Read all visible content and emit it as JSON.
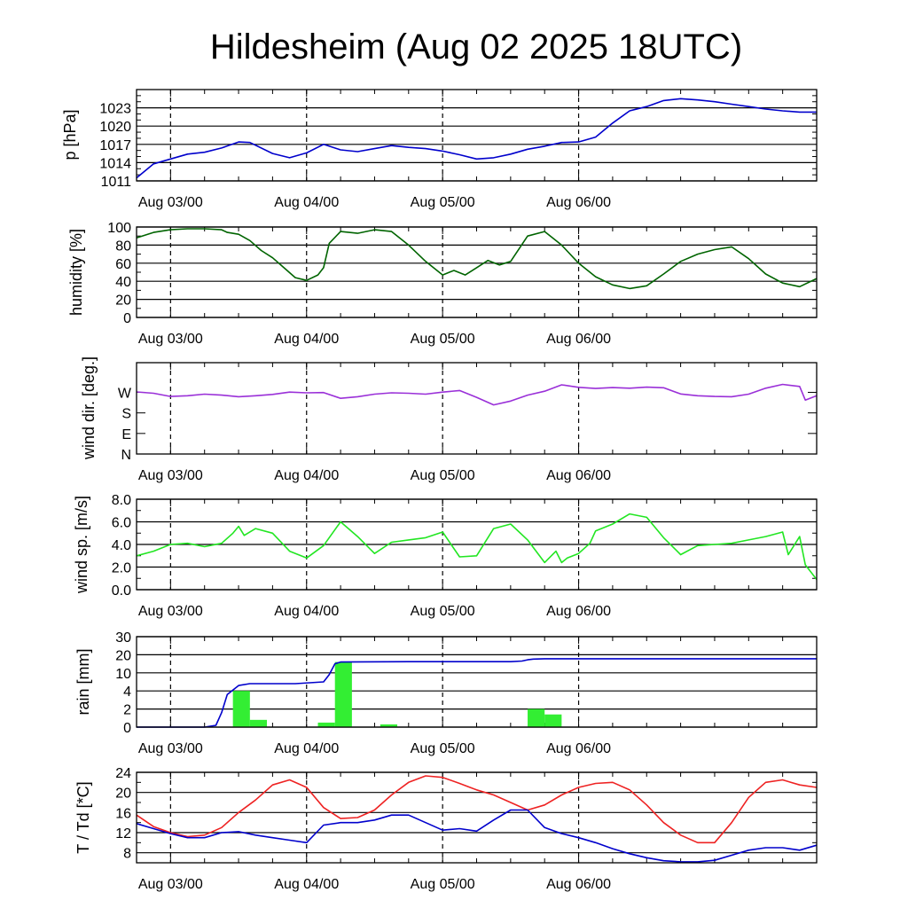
{
  "title": "Hildesheim (Aug 02 2025 18UTC)",
  "colors": {
    "pressure": "#0000cc",
    "humidity": "#006400",
    "wind_dir": "#9a30d8",
    "wind_speed": "#22e622",
    "rain_bar": "#33ee33",
    "rain_cum": "#0000cc",
    "temperature": "#ee2222",
    "dewpoint": "#0000cc"
  },
  "x_tick_labels": [
    "Aug 03/00",
    "Aug 04/00",
    "Aug 05/00",
    "Aug 06/00"
  ],
  "chart_data": [
    {
      "type": "line",
      "ylabel": "p [hPa]",
      "ylim": [
        1011,
        1026
      ],
      "yticks": [
        1011,
        1014,
        1017,
        1020,
        1023
      ],
      "yticklabels": [
        "1011",
        "1014",
        "1017",
        "1020",
        "1023"
      ],
      "x_hours": [
        0,
        3,
        6,
        9,
        12,
        15,
        18,
        20,
        24,
        27,
        30,
        33,
        36,
        39,
        42,
        45,
        48,
        51,
        54,
        57,
        60,
        63,
        66,
        69,
        72,
        75,
        78,
        81,
        84,
        87,
        90,
        93,
        96,
        99,
        102,
        105,
        108,
        111,
        114,
        117,
        120
      ],
      "series": [
        {
          "key": "pressure",
          "values": [
            1011.5,
            1013.8,
            1014.6,
            1015.4,
            1015.7,
            1016.4,
            1017.4,
            1017.3,
            1015.5,
            1014.8,
            1015.6,
            1017.0,
            1016.1,
            1015.8,
            1016.3,
            1016.8,
            1016.5,
            1016.3,
            1015.9,
            1015.3,
            1014.6,
            1014.8,
            1015.4,
            1016.2,
            1016.7,
            1017.3,
            1017.4,
            1018.2,
            1020.5,
            1022.5,
            1023.2,
            1024.2,
            1024.5,
            1024.3,
            1024.0,
            1023.6,
            1023.2,
            1022.8,
            1022.5,
            1022.3,
            1022.3
          ]
        }
      ]
    },
    {
      "type": "line",
      "ylabel": "humidity [%]",
      "ylim": [
        0,
        100
      ],
      "yticks": [
        0,
        20,
        40,
        60,
        80,
        100
      ],
      "yticklabels": [
        "0",
        "20",
        "40",
        "60",
        "80",
        "100"
      ],
      "x_hours": [
        0,
        3,
        6,
        9,
        12,
        15,
        16,
        18,
        20,
        22,
        24,
        26,
        28,
        30,
        32,
        33,
        34,
        36,
        39,
        42,
        45,
        48,
        51,
        54,
        56,
        58,
        60,
        62,
        64,
        66,
        69,
        72,
        75,
        78,
        81,
        84,
        87,
        90,
        93,
        96,
        99,
        102,
        105,
        108,
        111,
        114,
        117,
        120
      ],
      "series": [
        {
          "key": "humidity",
          "values": [
            88,
            94,
            97,
            98,
            98,
            97,
            94,
            92,
            85,
            74,
            66,
            55,
            44,
            41,
            47,
            55,
            82,
            95,
            93,
            97,
            95,
            80,
            62,
            47,
            52,
            47,
            55,
            63,
            58,
            62,
            90,
            95,
            80,
            60,
            45,
            36,
            32,
            35,
            48,
            62,
            70,
            75,
            78,
            65,
            48,
            38,
            34,
            43
          ]
        }
      ]
    },
    {
      "type": "line",
      "ylabel": "wind dir. [deg.]",
      "ylim": [
        0,
        400
      ],
      "yticks": [
        0,
        90,
        180,
        270
      ],
      "yticklabels": [
        "N",
        "E",
        "S",
        "W"
      ],
      "x_hours": [
        0,
        3,
        6,
        9,
        12,
        15,
        18,
        21,
        24,
        27,
        30,
        33,
        36,
        39,
        42,
        45,
        48,
        51,
        54,
        57,
        60,
        63,
        66,
        69,
        72,
        75,
        78,
        81,
        84,
        87,
        90,
        93,
        96,
        99,
        102,
        105,
        108,
        111,
        114,
        117,
        118,
        120
      ],
      "series": [
        {
          "key": "wind_dir",
          "values": [
            272,
            266,
            252,
            255,
            262,
            258,
            251,
            255,
            261,
            271,
            268,
            269,
            244,
            251,
            262,
            268,
            266,
            262,
            271,
            278,
            248,
            215,
            232,
            258,
            275,
            303,
            292,
            287,
            291,
            288,
            293,
            290,
            263,
            255,
            252,
            251,
            262,
            288,
            305,
            296,
            236,
            255
          ]
        }
      ]
    },
    {
      "type": "line",
      "ylabel": "wind sp. [m/s]",
      "ylim": [
        0,
        8
      ],
      "yticks": [
        0,
        2,
        4,
        6,
        8
      ],
      "yticklabels": [
        "0.0",
        "2.0",
        "4.0",
        "6.0",
        "8.0"
      ],
      "x_hours": [
        0,
        3,
        6,
        9,
        12,
        15,
        17,
        18,
        19,
        21,
        24,
        27,
        30,
        33,
        36,
        39,
        42,
        45,
        48,
        51,
        54,
        57,
        60,
        63,
        66,
        69,
        72,
        74,
        75,
        76,
        78,
        80,
        81,
        84,
        87,
        90,
        93,
        96,
        99,
        102,
        105,
        108,
        111,
        114,
        115,
        117,
        118,
        120
      ],
      "series": [
        {
          "key": "wind_speed",
          "values": [
            3.0,
            3.4,
            4.0,
            4.1,
            3.8,
            4.1,
            5.0,
            5.6,
            4.8,
            5.4,
            5.0,
            3.4,
            2.8,
            3.9,
            6.0,
            4.7,
            3.2,
            4.2,
            4.4,
            4.6,
            5.1,
            2.9,
            3.0,
            5.4,
            5.8,
            4.4,
            2.4,
            3.4,
            2.4,
            2.8,
            3.2,
            4.1,
            5.2,
            5.8,
            6.7,
            6.4,
            4.6,
            3.1,
            3.9,
            4.0,
            4.1,
            4.4,
            4.7,
            5.1,
            3.1,
            4.7,
            2.2,
            0.9
          ]
        }
      ]
    },
    {
      "type": "bar",
      "ylabel": "rain [mm]",
      "ylim": [
        0,
        5
      ],
      "yticks": [
        0,
        1,
        2,
        3,
        4,
        5
      ],
      "yticklabels": [
        "0",
        "2",
        "4",
        "10",
        "20",
        "30"
      ],
      "bar_x_hours": [
        17,
        20,
        32,
        35,
        43,
        69,
        72
      ],
      "bar_width_hours": 3,
      "bar_values": [
        2.0,
        0.4,
        0.25,
        3.6,
        0.15,
        1.0,
        0.7
      ],
      "x_hours": [
        0,
        12,
        14,
        15,
        16,
        18,
        20,
        24,
        28,
        33,
        34,
        35,
        36,
        48,
        60,
        66,
        68,
        69,
        70,
        72,
        84,
        96,
        108,
        120
      ],
      "series": [
        {
          "key": "rain_cum",
          "values": [
            0,
            0,
            0.1,
            0.8,
            1.8,
            2.3,
            2.4,
            2.4,
            2.4,
            2.5,
            2.9,
            3.5,
            3.6,
            3.62,
            3.62,
            3.62,
            3.65,
            3.72,
            3.76,
            3.78,
            3.78,
            3.78,
            3.78,
            3.78
          ]
        }
      ]
    },
    {
      "type": "line",
      "ylabel": "T / Td [*C]",
      "ylim": [
        6,
        24
      ],
      "yticks": [
        8,
        12,
        16,
        20,
        24
      ],
      "yticklabels": [
        "8",
        "12",
        "16",
        "20",
        "24"
      ],
      "x_hours": [
        0,
        3,
        6,
        9,
        12,
        15,
        18,
        21,
        24,
        27,
        30,
        33,
        36,
        39,
        42,
        45,
        48,
        51,
        54,
        57,
        60,
        63,
        66,
        69,
        72,
        75,
        78,
        81,
        84,
        87,
        90,
        93,
        96,
        99,
        102,
        105,
        108,
        111,
        114,
        117,
        120
      ],
      "series": [
        {
          "key": "temperature",
          "values": [
            15.5,
            13.2,
            12.0,
            11.2,
            11.5,
            13.0,
            16.0,
            18.5,
            21.5,
            22.5,
            21.0,
            17.0,
            14.8,
            15.0,
            16.5,
            19.5,
            22.0,
            23.3,
            23.0,
            21.8,
            20.5,
            19.5,
            18.0,
            16.5,
            17.5,
            19.5,
            21.0,
            21.8,
            22.0,
            20.5,
            17.5,
            14.0,
            11.5,
            10.0,
            10.0,
            14.0,
            19.0,
            22.0,
            22.5,
            21.5,
            21.0
          ]
        },
        {
          "key": "dewpoint",
          "values": [
            13.8,
            12.8,
            11.8,
            11.0,
            11.0,
            12.0,
            12.2,
            11.5,
            11.0,
            10.5,
            10.0,
            13.5,
            14.0,
            14.0,
            14.5,
            15.5,
            15.5,
            14.0,
            12.5,
            12.8,
            12.3,
            14.5,
            16.5,
            16.5,
            13.0,
            11.8,
            11.0,
            10.0,
            8.8,
            7.8,
            7.0,
            6.4,
            6.2,
            6.2,
            6.5,
            7.5,
            8.5,
            9.0,
            9.0,
            8.5,
            9.5
          ]
        }
      ]
    }
  ]
}
